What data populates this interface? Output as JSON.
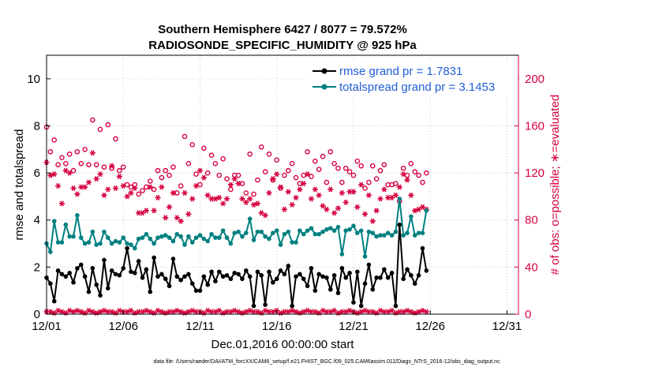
{
  "title_line1": "Southern Hemisphere 6427 / 8077 = 79.572%",
  "title_line2": "RADIOSONDE_SPECIFIC_HUMIDITY @ 925 hPa",
  "footnote": "data file: /Users/raeder/DAI/ATM_forcXX/CAM6_setup/f.e21.FHIST_BGC.f09_025.CAM6assim.011/Diags_NTrS_2016-12/obs_diag_output.nc",
  "colors": {
    "rmse": "#000000",
    "totalspread": "#008080",
    "obs": "#d6003e",
    "legend_text": "#1f5fd6"
  },
  "chart_data": {
    "type": "line",
    "title": "Southern Hemisphere 6427 / 8077 = 79.572% RADIOSONDE_SPECIFIC_HUMIDITY @ 925 hPa",
    "xlabel": "Dec.01,2016 00:00:00 start",
    "ylabel": "rmse and totalspread",
    "y2label": "# of obs: o=possible; ∗=evaluated",
    "x_ticks": [
      "12/01",
      "12/06",
      "12/11",
      "12/16",
      "12/21",
      "12/26",
      "12/31"
    ],
    "x_tick_days": [
      1,
      6,
      11,
      16,
      21,
      26,
      31
    ],
    "xlim": [
      1,
      31.75
    ],
    "ylim": [
      0,
      11
    ],
    "y_ticks": [
      "0",
      "2",
      "4",
      "6",
      "8",
      "10"
    ],
    "y2lim": [
      0,
      220
    ],
    "y2_ticks": [
      "0",
      "40",
      "80",
      "120",
      "160",
      "200"
    ],
    "legend_position": "top-right",
    "x_step": 0.25,
    "series": [
      {
        "name": "rmse grand pr = 1.7831",
        "axis": "left",
        "values": [
          1.55,
          1.3,
          0.55,
          1.85,
          1.7,
          1.6,
          1.75,
          1.35,
          1.95,
          2.1,
          1.6,
          0.95,
          1.95,
          1.25,
          0.8,
          2.3,
          1.1,
          1.85,
          1.7,
          1.65,
          1.95,
          2.8,
          1.8,
          1.75,
          2.25,
          1.55,
          1.9,
          0.95,
          2.4,
          1.6,
          1.7,
          1.5,
          1.2,
          2.35,
          1.6,
          1.45,
          1.6,
          1.7,
          1.3,
          1.0,
          1.0,
          1.6,
          1.25,
          1.8,
          1.4,
          1.8,
          1.6,
          1.65,
          1.5,
          1.75,
          1.7,
          1.5,
          1.85,
          1.6,
          0.35,
          1.8,
          1.65,
          0.4,
          1.8,
          1.35,
          1.5,
          1.85,
          1.7,
          2.05,
          0.35,
          1.6,
          1.7,
          1.5,
          1.2,
          1.95,
          1.0,
          1.7,
          1.6,
          1.55,
          1.05,
          1.65,
          0.9,
          1.95,
          1.55,
          1.75,
          0.5,
          1.8,
          0.35,
          1.3,
          2.1,
          1.05,
          1.55,
          1.55,
          1.9,
          1.55,
          1.75,
          0.35,
          3.8,
          1.5,
          1.9,
          1.65,
          1.3,
          1.65,
          2.8,
          1.85
        ],
        "color": "#000000"
      },
      {
        "name": "totalspread grand pr = 3.1453",
        "axis": "left",
        "values": [
          3.0,
          2.65,
          3.95,
          3.05,
          3.05,
          3.8,
          3.3,
          3.3,
          4.2,
          3.25,
          3.0,
          3.05,
          3.5,
          2.95,
          3.0,
          3.5,
          3.25,
          3.0,
          3.1,
          3.05,
          3.25,
          3.0,
          2.95,
          2.8,
          3.2,
          3.25,
          3.4,
          3.2,
          3.0,
          3.25,
          3.3,
          3.35,
          3.25,
          3.1,
          3.4,
          3.3,
          2.95,
          3.3,
          3.05,
          3.25,
          3.35,
          3.2,
          3.1,
          3.4,
          3.25,
          3.25,
          3.55,
          3.25,
          3.0,
          3.45,
          3.5,
          3.3,
          3.45,
          4.05,
          3.15,
          3.5,
          3.5,
          3.3,
          3.2,
          3.45,
          3.55,
          2.95,
          3.4,
          3.5,
          3.05,
          3.05,
          3.55,
          3.4,
          3.55,
          3.65,
          3.4,
          3.4,
          3.5,
          3.6,
          3.65,
          3.55,
          3.7,
          2.55,
          3.55,
          3.6,
          3.75,
          3.45,
          3.55,
          2.45,
          3.5,
          3.45,
          3.3,
          3.35,
          3.35,
          3.45,
          3.35,
          3.5,
          4.9,
          3.35,
          3.45,
          4.15,
          3.35,
          3.45,
          3.45,
          4.4
        ],
        "color": "#008080"
      },
      {
        "name": "possible",
        "axis": "right",
        "marker": "o",
        "values": [
          159,
          138,
          148,
          127,
          133,
          128,
          136,
          122,
          138,
          128,
          140,
          127,
          165,
          127,
          157,
          125,
          161,
          124,
          149,
          122,
          125,
          110,
          108,
          110,
          102,
          105,
          108,
          113,
          106,
          122,
          116,
          122,
          118,
          125,
          103,
          109,
          151,
          128,
          144,
          119,
          110,
          141,
          120,
          135,
          128,
          118,
          132,
          115,
          106,
          118,
          118,
          111,
          103,
          136,
          102,
          114,
          142,
          121,
          136,
          114,
          131,
          107,
          118,
          122,
          128,
          116,
          111,
          118,
          138,
          117,
          130,
          123,
          134,
          112,
          138,
          128,
          124,
          112,
          124,
          121,
          118,
          130,
          126,
          107,
          112,
          126,
          115,
          122,
          127,
          110,
          110,
          111,
          96,
          124,
          118,
          128,
          121,
          118,
          112,
          120
        ],
        "color": "#d6003e"
      },
      {
        "name": "evaluated",
        "axis": "right",
        "marker": "*",
        "values": [
          129,
          118,
          119,
          109,
          94,
          122,
          120,
          107,
          102,
          108,
          108,
          112,
          137,
          115,
          119,
          101,
          106,
          126,
          107,
          117,
          109,
          100,
          103,
          107,
          86,
          86,
          88,
          108,
          88,
          99,
          108,
          82,
          91,
          103,
          82,
          79,
          103,
          85,
          98,
          109,
          122,
          116,
          101,
          98,
          98,
          99,
          94,
          98,
          110,
          115,
          111,
          98,
          95,
          98,
          93,
          94,
          86,
          84,
          103,
          115,
          119,
          108,
          89,
          104,
          93,
          99,
          106,
          111,
          119,
          98,
          106,
          101,
          92,
          89,
          106,
          86,
          90,
          103,
          95,
          104,
          104,
          91,
          110,
          85,
          101,
          79,
          88,
          98,
          106,
          99,
          99,
          101,
          108,
          119,
          114,
          101,
          88,
          89,
          91,
          89
        ],
        "color": "#d6003e"
      },
      {
        "name": "rejected",
        "axis": "right",
        "marker": "*",
        "values": [
          2,
          2,
          1,
          3,
          2,
          1,
          3,
          2,
          3,
          2,
          1,
          3,
          2,
          1,
          2,
          3,
          2,
          2,
          1,
          3,
          2,
          2,
          3,
          1,
          2,
          2,
          3,
          2,
          1,
          3,
          2,
          1,
          2,
          2,
          3,
          2,
          1,
          2,
          3,
          2,
          2,
          1,
          3,
          2,
          2,
          3,
          1,
          2,
          2,
          3,
          2,
          1,
          2,
          3,
          2,
          2,
          1,
          3,
          2,
          2,
          3,
          1,
          2,
          2,
          3,
          2,
          1,
          2,
          3,
          2,
          2,
          1,
          3,
          2,
          2,
          3,
          1,
          2,
          2,
          3,
          2,
          1,
          2,
          3,
          2,
          2,
          1,
          3,
          2,
          2,
          3,
          1,
          2,
          2,
          3,
          2,
          1,
          2,
          3,
          2
        ],
        "color": "#d6003e"
      }
    ]
  }
}
